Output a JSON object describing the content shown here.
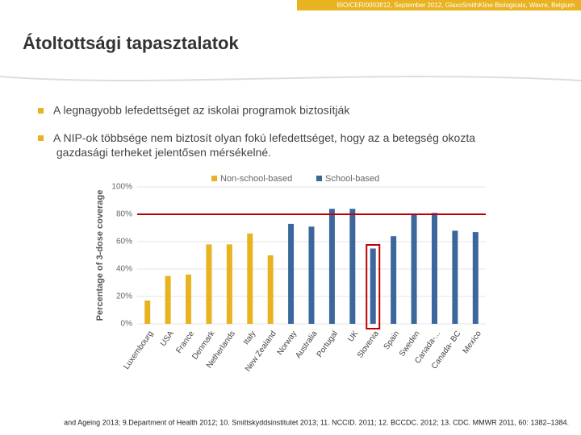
{
  "header": {
    "source": "BIO/CER/0003f/12, September 2012, GlaxoSmithKline Biologicals, Wavre, Belgium"
  },
  "title": "Átoltottsági tapasztalatok",
  "bullets": [
    "A legnagyobb lefedettséget az iskolai programok biztosítják",
    "A  NIP-ok többsége nem biztosít olyan fokú lefedettséget, hogy az a betegség okozta gazdasági terheket jelentősen mérsékelné."
  ],
  "chart_data": {
    "type": "bar",
    "y_label": "Percentage of 3-dose coverage",
    "categories": [
      "Luxembourg",
      "USA",
      "France",
      "Denmark",
      "Netherlands",
      "Italy",
      "New Zealand",
      "Norway",
      "Australia",
      "Portugal",
      "UK",
      "Slovenia",
      "Spain",
      "Sweden",
      "Canada-...",
      "Canada- BC",
      "Mexico"
    ],
    "series": [
      {
        "name": "Non-school-based",
        "color": "#e8b220",
        "values": [
          17,
          35,
          36,
          58,
          58,
          66,
          50,
          null,
          null,
          null,
          null,
          null,
          null,
          null,
          null,
          null,
          null
        ]
      },
      {
        "name": "School-based",
        "color": "#3b679c",
        "values": [
          null,
          null,
          null,
          null,
          null,
          null,
          null,
          73,
          71,
          84,
          84,
          55,
          64,
          80,
          81,
          68,
          67
        ]
      }
    ],
    "ylim": [
      0,
      100
    ],
    "yticks": [
      {
        "value": 0,
        "label": "0%"
      },
      {
        "value": 20,
        "label": "20%"
      },
      {
        "value": 40,
        "label": "40%"
      },
      {
        "value": 60,
        "label": "60%"
      },
      {
        "value": 80,
        "label": "80%"
      },
      {
        "value": 100,
        "label": "100%"
      }
    ],
    "grid": true,
    "reference_line": 80,
    "reference_color": "#c00000",
    "highlight_index": 11,
    "legend": "top"
  },
  "footer": "and Ageing 2013; 9.Department of Health 2012; 10. Smittskyddsinstitutet 2013; 11. NCCID. 2011; 12. BCCDC. 2012; 13. CDC. MMWR 2011, 60: 1382–1384."
}
